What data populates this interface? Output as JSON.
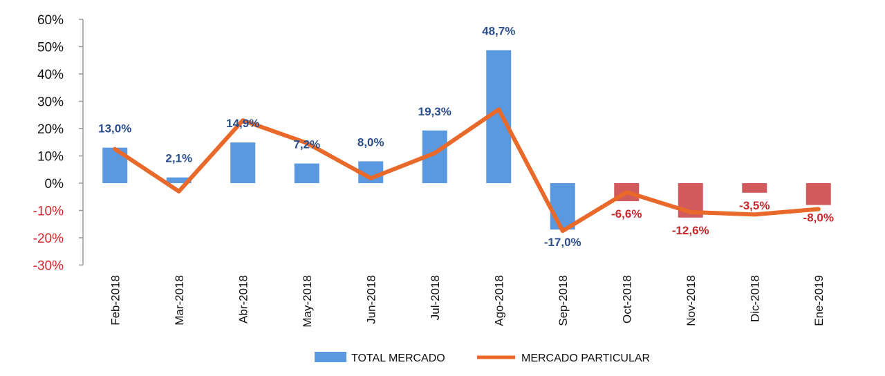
{
  "chart_data": {
    "type": "bar+line",
    "title": "",
    "xlabel": "",
    "ylabel": "",
    "ylim": [
      -30,
      60
    ],
    "yticks": [
      "60%",
      "50%",
      "40%",
      "30%",
      "20%",
      "10%",
      "0%",
      "-10%",
      "-20%",
      "-30%"
    ],
    "ytick_values": [
      60,
      50,
      40,
      30,
      20,
      10,
      0,
      -10,
      -20,
      -30
    ],
    "categories": [
      "Feb-2018",
      "Mar-2018",
      "Abr-2018",
      "May-2018",
      "Jun-2018",
      "Jul-2018",
      "Ago-2018",
      "Sep-2018",
      "Oct-2018",
      "Nov-2018",
      "Dic-2018",
      "Ene-2019"
    ],
    "series": [
      {
        "name": "TOTAL MERCADO",
        "type": "bar",
        "values": [
          13.0,
          2.1,
          14.9,
          7.2,
          8.0,
          19.3,
          48.7,
          -17.0,
          -6.6,
          -12.6,
          -3.5,
          -8.0
        ],
        "labels": [
          "13,0%",
          "2,1%",
          "14,9%",
          "7,2%",
          "8,0%",
          "19,3%",
          "48,7%",
          "-17,0%",
          "-6,6%",
          "-12,6%",
          "-3,5%",
          "-8,0%"
        ]
      },
      {
        "name": "MERCADO PARTICULAR",
        "type": "line",
        "values": [
          12.5,
          -3.0,
          23.0,
          14.7,
          1.8,
          11.0,
          27.0,
          -17.5,
          -3.3,
          -10.6,
          -11.5,
          -9.5
        ]
      }
    ],
    "legend": "bottom",
    "grid": false,
    "colors": {
      "bar_positive": "#5a98e0",
      "bar_negative": "#d05a5c",
      "bar_red_from_index": 8,
      "line": "#e8692a",
      "label_blue": "#2b4f8c",
      "label_red": "#c8282a",
      "tick_negative": "#d0262a"
    }
  }
}
